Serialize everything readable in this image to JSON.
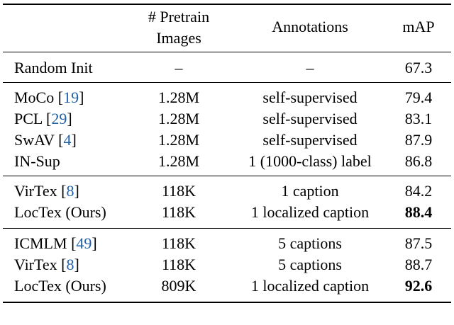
{
  "table": {
    "headers": {
      "pretrain_line1": "# Pretrain",
      "pretrain_line2": "Images",
      "annotations": "Annotations",
      "map": "mAP"
    },
    "groups": [
      [
        {
          "method": "Random Init",
          "ref": "",
          "images": "–",
          "annotations": "–",
          "map": "67.3",
          "bold": false
        }
      ],
      [
        {
          "method": "MoCo",
          "ref": "19",
          "images": "1.28M",
          "annotations": "self-supervised",
          "map": "79.4",
          "bold": false
        },
        {
          "method": "PCL",
          "ref": "29",
          "images": "1.28M",
          "annotations": "self-supervised",
          "map": "83.1",
          "bold": false
        },
        {
          "method": "SwAV",
          "ref": "4",
          "images": "1.28M",
          "annotations": "self-supervised",
          "map": "87.9",
          "bold": false
        },
        {
          "method": "IN-Sup",
          "ref": "",
          "images": "1.28M",
          "annotations": "1 (1000-class) label",
          "map": "86.8",
          "bold": false
        }
      ],
      [
        {
          "method": "VirTex",
          "ref": "8",
          "images": "118K",
          "annotations": "1 caption",
          "map": "84.2",
          "bold": false
        },
        {
          "method": "LocTex (Ours)",
          "ref": "",
          "images": "118K",
          "annotations": "1 localized caption",
          "map": "88.4",
          "bold": true
        }
      ],
      [
        {
          "method": "ICMLM",
          "ref": "49",
          "images": "118K",
          "annotations": "5 captions",
          "map": "87.5",
          "bold": false
        },
        {
          "method": "VirTex",
          "ref": "8",
          "images": "118K",
          "annotations": "5 captions",
          "map": "88.7",
          "bold": false
        },
        {
          "method": "LocTex (Ours)",
          "ref": "",
          "images": "809K",
          "annotations": "1 localized caption",
          "map": "92.6",
          "bold": true
        }
      ]
    ]
  }
}
